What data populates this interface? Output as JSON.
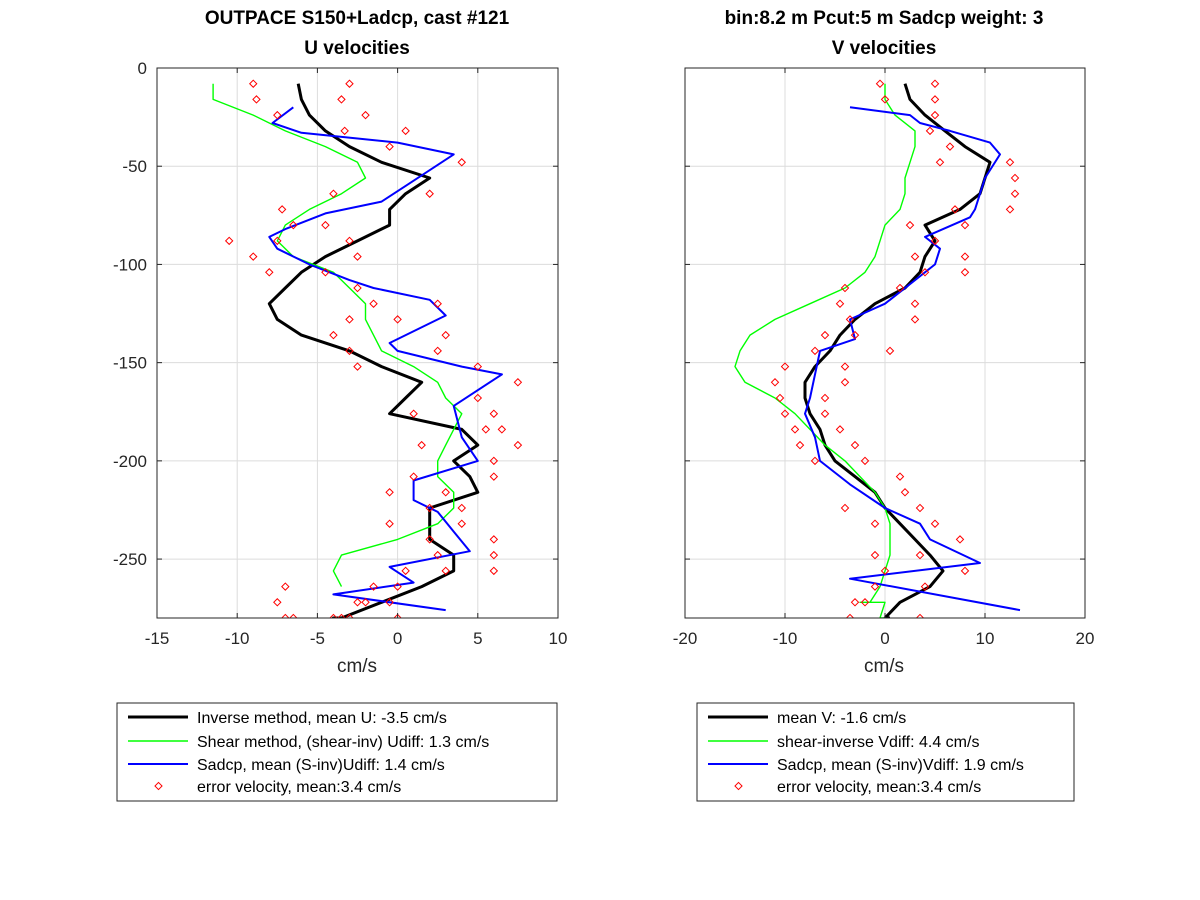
{
  "chart_data": [
    {
      "type": "line",
      "title": [
        "OUTPACE S150+Ladcp, cast #121",
        "U velocities"
      ],
      "xlabel": "cm/s",
      "ylabel": "",
      "xlim": [
        -15,
        10
      ],
      "ylim": [
        -280,
        0
      ],
      "xticks": [
        -15,
        -10,
        -5,
        0,
        5,
        10
      ],
      "yticks": [
        0,
        -50,
        -100,
        -150,
        -200,
        -250
      ],
      "grid": true,
      "legend_position": "below",
      "colors": {
        "inverse": "#000000",
        "shear": "#00ff00",
        "sadcp": "#0000ff",
        "error": "#ff0000"
      },
      "series": [
        {
          "key": "inverse",
          "name": "Inverse method, mean U:  -3.5 cm/s",
          "style": "line-thick",
          "x": [
            -6.2,
            -6.0,
            -5.5,
            -4.5,
            -3.0,
            -1.0,
            2.0,
            0.5,
            -0.5,
            -0.5,
            -2.5,
            -4.5,
            -6.0,
            -7.0,
            -8.0,
            -7.5,
            -6.0,
            -3.0,
            -1.0,
            1.5,
            0.5,
            -0.5,
            4.0,
            5.0,
            3.5,
            4.5,
            5.0,
            2.0,
            2.0,
            2.0,
            3.5,
            3.5,
            1.5,
            -1.0,
            -3.5,
            -4.0,
            -3.5
          ],
          "y": [
            -8,
            -16,
            -24,
            -32,
            -40,
            -48,
            -56,
            -64,
            -72,
            -80,
            -88,
            -96,
            -104,
            -112,
            -120,
            -128,
            -136,
            -144,
            -152,
            -160,
            -168,
            -176,
            -184,
            -192,
            -200,
            -208,
            -216,
            -224,
            -232,
            -240,
            -248,
            -256,
            -264,
            -272,
            -280,
            -280,
            -280
          ]
        },
        {
          "key": "shear",
          "name": "Shear method, (shear-inv)  Udiff:  1.3 cm/s",
          "style": "line",
          "x": [
            -11.5,
            -11.5,
            -9.0,
            -7.0,
            -4.5,
            -2.5,
            -2.0,
            -3.5,
            -5.5,
            -7.0,
            -7.5,
            -6.5,
            -4.0,
            -3.0,
            -2.0,
            -2.0,
            -1.5,
            -1.0,
            1.0,
            2.5,
            3.0,
            4.0,
            3.5,
            3.0,
            2.5,
            2.5,
            3.5,
            3.5,
            2.5,
            0.0,
            -3.5,
            -4.0,
            -3.5
          ],
          "y": [
            -8,
            -16,
            -24,
            -32,
            -40,
            -48,
            -56,
            -64,
            -72,
            -80,
            -88,
            -96,
            -104,
            -112,
            -120,
            -128,
            -136,
            -144,
            -152,
            -160,
            -168,
            -176,
            -184,
            -192,
            -200,
            -208,
            -216,
            -224,
            -232,
            -240,
            -248,
            -256,
            -264
          ]
        },
        {
          "key": "sadcp",
          "name": "Sadcp, mean (S-inv)Udiff: 1.4 cm/s",
          "style": "line",
          "x": [
            -6.5,
            -7.8,
            -6.0,
            0.0,
            3.5,
            0.5,
            -1.0,
            -4.5,
            -7.0,
            -8.0,
            -7.5,
            -5.5,
            -3.0,
            -1.5,
            2.0,
            3.0,
            -0.5,
            0.0,
            4.0,
            6.5,
            3.5,
            4.0,
            5.0,
            1.0,
            1.0,
            2.5,
            3.5,
            4.5,
            -0.5,
            1.0,
            -4.0,
            3.0
          ],
          "y": [
            -20,
            -28,
            -33,
            -38,
            -44,
            -60,
            -68,
            -74,
            -82,
            -86,
            -92,
            -100,
            -108,
            -112,
            -118,
            -126,
            -140,
            -144,
            -152,
            -156,
            -172,
            -188,
            -200,
            -210,
            -220,
            -226,
            -236,
            -246,
            -254,
            -262,
            -268,
            -276
          ]
        },
        {
          "key": "error",
          "name": "error velocity, mean:3.4 cm/s",
          "style": "markers",
          "x": [
            -9.0,
            -3.0,
            -8.8,
            -3.5,
            -7.5,
            -2.0,
            -3.3,
            0.5,
            -0.5,
            4.0,
            2.0,
            -4.0,
            -7.2,
            -4.5,
            -6.5,
            -3.0,
            -10.5,
            -7.5,
            -2.5,
            -9.0,
            -4.5,
            -8.0,
            -2.5,
            -1.5,
            2.5,
            -3.0,
            0.0,
            3.0,
            -4.0,
            2.5,
            -3.0,
            -2.5,
            5.0,
            7.5,
            5.0,
            6.0,
            1.0,
            5.5,
            6.5,
            1.5,
            6.0,
            7.5,
            1.0,
            6.0,
            3.0,
            -0.5,
            2.0,
            4.0,
            -0.5,
            4.0,
            2.0,
            6.0,
            2.5,
            6.0,
            3.0,
            6.0,
            0.5,
            0.0,
            -1.5,
            -2.0,
            -2.5,
            -3.0,
            -3.5,
            -4.0,
            -7.0,
            -7.5,
            -7.0,
            -6.5,
            -0.5,
            0.0
          ],
          "y": [
            -8,
            -8,
            -16,
            -16,
            -24,
            -24,
            -32,
            -32,
            -40,
            -48,
            -64,
            -64,
            -72,
            -80,
            -80,
            -88,
            -88,
            -88,
            -96,
            -96,
            -104,
            -104,
            -112,
            -120,
            -120,
            -128,
            -128,
            -136,
            -136,
            -144,
            -144,
            -152,
            -152,
            -160,
            -168,
            -176,
            -176,
            -184,
            -184,
            -192,
            -200,
            -192,
            -208,
            -208,
            -216,
            -216,
            -224,
            -224,
            -232,
            -232,
            -240,
            -240,
            -248,
            -248,
            -256,
            -256,
            -256,
            -264,
            -264,
            -272,
            -272,
            -280,
            -280,
            -280,
            -264,
            -272,
            -280,
            -280,
            -272,
            -280
          ]
        }
      ]
    },
    {
      "type": "line",
      "title": [
        "bin:8.2 m  Pcut:5 m  Sadcp weight: 3",
        "V velocities"
      ],
      "xlabel": "cm/s",
      "ylabel": "",
      "xlim": [
        -20,
        20
      ],
      "ylim": [
        -280,
        0
      ],
      "xticks": [
        -20,
        -10,
        0,
        10,
        20
      ],
      "yticks": [
        0,
        -50,
        -100,
        -150,
        -200,
        -250
      ],
      "grid": true,
      "legend_position": "below",
      "colors": {
        "inverse": "#000000",
        "shear": "#00ff00",
        "sadcp": "#0000ff",
        "error": "#ff0000"
      },
      "series": [
        {
          "key": "inverse",
          "name": "mean V:  -1.6 cm/s",
          "style": "line-thick",
          "x": [
            2.0,
            2.5,
            4.0,
            6.0,
            8.0,
            10.5,
            10.0,
            9.5,
            7.5,
            4.0,
            5.0,
            4.0,
            3.5,
            2.0,
            -1.0,
            -3.0,
            -4.5,
            -5.5,
            -7.0,
            -8.0,
            -8.0,
            -7.5,
            -6.5,
            -6.0,
            -5.0,
            -3.0,
            -1.0,
            0.0,
            1.5,
            3.0,
            4.5,
            5.8,
            4.5,
            1.5,
            0.0,
            0.5
          ],
          "y": [
            -8,
            -16,
            -24,
            -32,
            -40,
            -48,
            -56,
            -64,
            -72,
            -80,
            -88,
            -96,
            -104,
            -112,
            -120,
            -128,
            -136,
            -144,
            -152,
            -160,
            -168,
            -176,
            -184,
            -192,
            -200,
            -208,
            -216,
            -224,
            -232,
            -240,
            -248,
            -256,
            -264,
            -272,
            -280,
            -280
          ]
        },
        {
          "key": "shear",
          "name": "shear-inverse Vdiff:  4.4 cm/s",
          "style": "line",
          "x": [
            0.0,
            0.0,
            1.0,
            3.0,
            3.0,
            2.5,
            2.0,
            2.0,
            1.5,
            0.0,
            -0.5,
            -1.0,
            -2.0,
            -4.0,
            -7.5,
            -11.0,
            -13.5,
            -14.5,
            -15.0,
            -14.0,
            -11.0,
            -9.0,
            -7.5,
            -6.0,
            -4.0,
            -2.5,
            -1.0,
            0.0,
            0.5,
            0.5,
            0.5,
            0.0,
            -0.5,
            -1.5,
            -2.5,
            0.0,
            -0.5,
            0.0
          ],
          "y": [
            -8,
            -16,
            -24,
            -32,
            -40,
            -48,
            -56,
            -64,
            -72,
            -80,
            -88,
            -96,
            -104,
            -112,
            -120,
            -128,
            -136,
            -144,
            -152,
            -160,
            -168,
            -176,
            -184,
            -192,
            -200,
            -208,
            -216,
            -224,
            -232,
            -240,
            -248,
            -256,
            -264,
            -272,
            -272,
            -272,
            -280,
            -280
          ]
        },
        {
          "key": "sadcp",
          "name": "Sadcp, mean (S-inv)Vdiff: 1.9 cm/s",
          "style": "line",
          "x": [
            -3.5,
            2.5,
            3.5,
            6.5,
            10.5,
            11.5,
            10.0,
            9.0,
            8.5,
            4.0,
            5.5,
            5.0,
            2.5,
            0.0,
            -3.5,
            -3.0,
            -6.5,
            -7.0,
            -7.5,
            -8.0,
            -7.0,
            -6.5,
            -3.5,
            0.0,
            3.5,
            4.5,
            9.5,
            -3.5,
            13.5
          ],
          "y": [
            -20,
            -24,
            -28,
            -32,
            -38,
            -44,
            -56,
            -72,
            -76,
            -86,
            -92,
            -100,
            -110,
            -120,
            -128,
            -138,
            -144,
            -156,
            -168,
            -176,
            -188,
            -200,
            -212,
            -224,
            -232,
            -240,
            -252,
            -260,
            -276
          ]
        },
        {
          "key": "error",
          "name": "error velocity, mean:3.4 cm/s",
          "style": "markers",
          "x": [
            -0.5,
            5.0,
            0.0,
            5.0,
            5.0,
            4.5,
            6.5,
            5.5,
            12.5,
            13.0,
            13.0,
            12.5,
            7.0,
            2.5,
            8.0,
            5.0,
            3.0,
            8.0,
            4.0,
            8.0,
            -4.0,
            1.5,
            -4.5,
            3.0,
            -3.5,
            3.0,
            -6.0,
            -3.0,
            -7.0,
            0.5,
            -10.0,
            -4.0,
            -11.0,
            -4.0,
            -10.5,
            -6.0,
            -10.0,
            -6.0,
            -9.0,
            -4.5,
            -8.5,
            -3.0,
            -7.0,
            -2.0,
            1.5,
            2.0,
            -4.0,
            3.5,
            -1.0,
            5.0,
            7.5,
            -1.0,
            3.5,
            8.0,
            0.0,
            4.0,
            -1.0,
            -2.0,
            -3.0,
            -3.5,
            3.5
          ],
          "y": [
            -8,
            -8,
            -16,
            -16,
            -24,
            -32,
            -40,
            -48,
            -48,
            -56,
            -64,
            -72,
            -72,
            -80,
            -80,
            -88,
            -96,
            -96,
            -104,
            -104,
            -112,
            -112,
            -120,
            -120,
            -128,
            -128,
            -136,
            -136,
            -144,
            -144,
            -152,
            -152,
            -160,
            -160,
            -168,
            -168,
            -176,
            -176,
            -184,
            -184,
            -192,
            -192,
            -200,
            -200,
            -208,
            -216,
            -224,
            -224,
            -232,
            -232,
            -240,
            -248,
            -248,
            -256,
            -256,
            -264,
            -264,
            -272,
            -272,
            -280,
            -280
          ]
        }
      ]
    }
  ]
}
